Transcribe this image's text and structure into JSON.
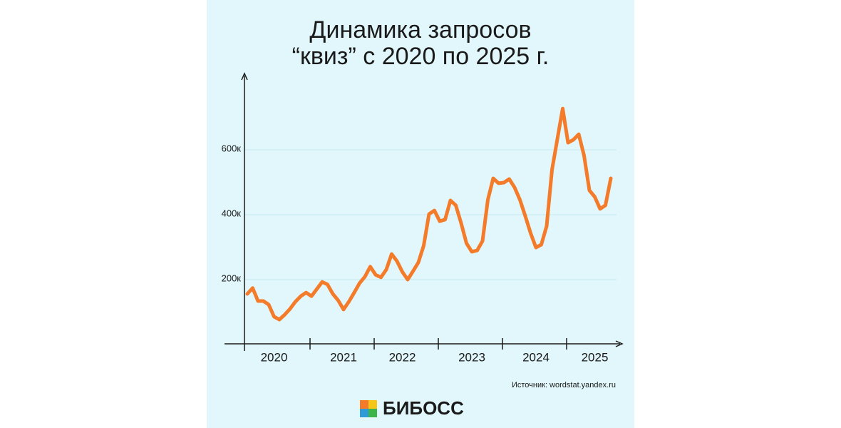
{
  "chart_data": {
    "type": "line",
    "title_line1": "Динамика запросов",
    "title_line2": "“квиз” с 2020 по 2025 г.",
    "categories": [
      null,
      null,
      null,
      null,
      null,
      "2020",
      null,
      null,
      null,
      null,
      null,
      null,
      null,
      null,
      null,
      null,
      null,
      null,
      "2021",
      null,
      null,
      null,
      null,
      null,
      null,
      null,
      null,
      null,
      null,
      "2022",
      null,
      null,
      null,
      null,
      null,
      null,
      null,
      null,
      null,
      null,
      null,
      null,
      "2023",
      null,
      null,
      null,
      null,
      null,
      null,
      null,
      null,
      null,
      null,
      null,
      "2024",
      null,
      null,
      null,
      null,
      null,
      null,
      null,
      null,
      null,
      null,
      "2025",
      null,
      null,
      null
    ],
    "values": [
      156000,
      174000,
      134000,
      134000,
      123000,
      86000,
      77000,
      92000,
      110000,
      132000,
      149000,
      160000,
      149000,
      171000,
      193000,
      185000,
      156000,
      136000,
      108000,
      132000,
      160000,
      189000,
      209000,
      240000,
      215000,
      207000,
      231000,
      279000,
      257000,
      224000,
      200000,
      226000,
      253000,
      305000,
      402000,
      413000,
      380000,
      385000,
      444000,
      429000,
      374000,
      312000,
      286000,
      290000,
      319000,
      446000,
      512000,
      497000,
      499000,
      510000,
      484000,
      446000,
      396000,
      343000,
      299000,
      308000,
      365000,
      538000,
      633000,
      727000,
      622000,
      631000,
      648000,
      582000,
      475000,
      455000,
      418000,
      429000,
      512000
    ],
    "color": "#f47b2a",
    "ylim": [
      0,
      800000
    ],
    "yticks": [
      {
        "value": 200000,
        "label": "200к"
      },
      {
        "value": 400000,
        "label": "400к"
      },
      {
        "value": 600000,
        "label": "600к"
      }
    ],
    "grid": true,
    "source": "Источник: wordstat.yandex.ru",
    "brand": "БИБОСС"
  }
}
